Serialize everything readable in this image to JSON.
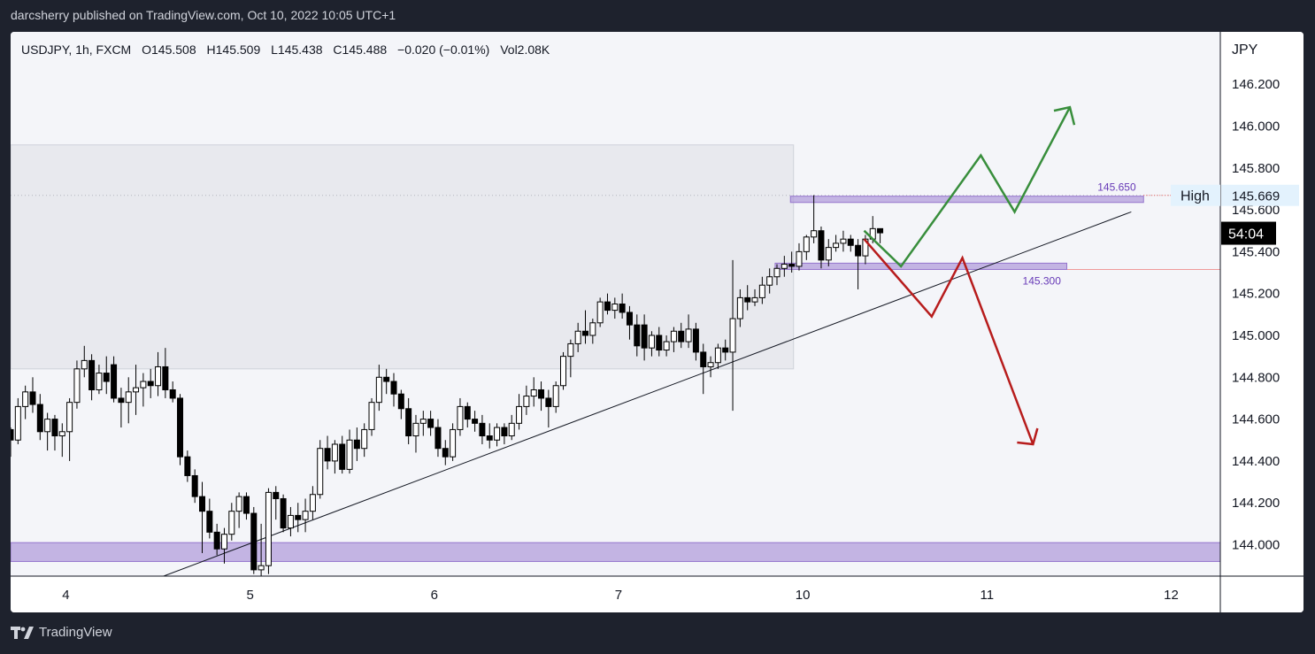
{
  "header": {
    "publisher_line": "darcsherry published on TradingView.com, Oct 10, 2022 10:05 UTC+1"
  },
  "footer": {
    "brand": "TradingView",
    "brand_icon": "tradingview-logo-icon"
  },
  "colors": {
    "background": "#1e222d",
    "up_candle_fill": "#ffffff",
    "down_candle_fill": "#000000",
    "zone_fill": "#b39ddb",
    "zone_border": "#9575cd",
    "bullish_path": "#388e3c",
    "bearish_path": "#b71c1c",
    "trendline": "#131722",
    "range_box": "#e8e9ee"
  },
  "chart_data": {
    "type": "candlestick",
    "legend": {
      "symbol": "USDJPY, 1h, FXCM",
      "open": "O145.508",
      "high": "H145.509",
      "low": "L145.438",
      "close": "C145.488",
      "change": "−0.020 (−0.01%)",
      "volume": "Vol2.08K"
    },
    "currency_label": "JPY",
    "y_ticks": [
      "146.200",
      "146.000",
      "145.800",
      "145.600",
      "145.400",
      "145.200",
      "145.000",
      "144.800",
      "144.600",
      "144.400",
      "144.200",
      "144.000"
    ],
    "ylim": [
      143.85,
      146.45
    ],
    "x_ticks": [
      {
        "label": "4",
        "pos": 2.0
      },
      {
        "label": "5",
        "pos": 5.0
      },
      {
        "label": "6",
        "pos": 8.0
      },
      {
        "label": "7",
        "pos": 11.0
      },
      {
        "label": "10",
        "pos": 14.0
      },
      {
        "label": "11",
        "pos": 17.0
      },
      {
        "label": "12",
        "pos": 20.0
      }
    ],
    "xlim": [
      1.1,
      20.8
    ],
    "high_tag": {
      "label": "High",
      "value": "145.669",
      "y": 145.669
    },
    "countdown_tag": {
      "label": "54:04",
      "y": 145.488
    },
    "zones": [
      {
        "label": "145.650",
        "x0": 13.8,
        "x1": 19.55,
        "y0": 145.635,
        "y1": 145.665
      },
      {
        "label": "145.300",
        "x0": 13.55,
        "x1": 18.3,
        "y0": 145.315,
        "y1": 145.345
      },
      {
        "label": "",
        "x0": 1.1,
        "x1": 20.8,
        "y0": 143.92,
        "y1": 144.01
      }
    ],
    "range_box": {
      "x0": 1.1,
      "x1": 13.85,
      "y0": 144.84,
      "y1": 145.91
    },
    "trendline": [
      {
        "x": 3.5,
        "y": 143.84
      },
      {
        "x": 19.35,
        "y": 145.59
      }
    ],
    "bullish_path": [
      {
        "x": 15.0,
        "y": 145.5
      },
      {
        "x": 15.6,
        "y": 145.33
      },
      {
        "x": 16.9,
        "y": 145.86
      },
      {
        "x": 17.45,
        "y": 145.59
      },
      {
        "x": 18.35,
        "y": 146.09
      },
      {
        "x": 18.4,
        "y": 146.01
      }
    ],
    "bearish_path": [
      {
        "x": 15.0,
        "y": 145.46
      },
      {
        "x": 16.1,
        "y": 145.09
      },
      {
        "x": 16.6,
        "y": 145.37
      },
      {
        "x": 17.75,
        "y": 144.48
      },
      {
        "x": 17.85,
        "y": 144.56
      }
    ],
    "candles": [
      {
        "x": 1.1,
        "o": 144.55,
        "h": 144.56,
        "l": 144.42,
        "c": 144.5
      },
      {
        "x": 1.22,
        "o": 144.5,
        "h": 144.7,
        "l": 144.48,
        "c": 144.66
      },
      {
        "x": 1.34,
        "o": 144.66,
        "h": 144.76,
        "l": 144.6,
        "c": 144.73
      },
      {
        "x": 1.46,
        "o": 144.73,
        "h": 144.8,
        "l": 144.63,
        "c": 144.67
      },
      {
        "x": 1.58,
        "o": 144.67,
        "h": 144.72,
        "l": 144.5,
        "c": 144.54
      },
      {
        "x": 1.7,
        "o": 144.54,
        "h": 144.63,
        "l": 144.45,
        "c": 144.6
      },
      {
        "x": 1.82,
        "o": 144.6,
        "h": 144.62,
        "l": 144.45,
        "c": 144.52
      },
      {
        "x": 1.94,
        "o": 144.52,
        "h": 144.58,
        "l": 144.42,
        "c": 144.54
      },
      {
        "x": 2.06,
        "o": 144.54,
        "h": 144.7,
        "l": 144.4,
        "c": 144.68
      },
      {
        "x": 2.18,
        "o": 144.68,
        "h": 144.88,
        "l": 144.65,
        "c": 144.84
      },
      {
        "x": 2.3,
        "o": 144.84,
        "h": 144.95,
        "l": 144.8,
        "c": 144.88
      },
      {
        "x": 2.42,
        "o": 144.88,
        "h": 144.91,
        "l": 144.69,
        "c": 144.74
      },
      {
        "x": 2.54,
        "o": 144.74,
        "h": 144.86,
        "l": 144.72,
        "c": 144.82
      },
      {
        "x": 2.66,
        "o": 144.82,
        "h": 144.9,
        "l": 144.72,
        "c": 144.78
      },
      {
        "x": 2.78,
        "o": 144.86,
        "h": 144.9,
        "l": 144.68,
        "c": 144.7
      },
      {
        "x": 2.9,
        "o": 144.7,
        "h": 144.75,
        "l": 144.56,
        "c": 144.68
      },
      {
        "x": 3.02,
        "o": 144.68,
        "h": 144.8,
        "l": 144.58,
        "c": 144.73
      },
      {
        "x": 3.14,
        "o": 144.73,
        "h": 144.86,
        "l": 144.62,
        "c": 144.75
      },
      {
        "x": 3.26,
        "o": 144.75,
        "h": 144.82,
        "l": 144.66,
        "c": 144.78
      },
      {
        "x": 3.38,
        "o": 144.78,
        "h": 144.84,
        "l": 144.7,
        "c": 144.76
      },
      {
        "x": 3.5,
        "o": 144.76,
        "h": 144.92,
        "l": 144.71,
        "c": 144.85
      },
      {
        "x": 3.62,
        "o": 144.85,
        "h": 144.94,
        "l": 144.7,
        "c": 144.74
      },
      {
        "x": 3.74,
        "o": 144.74,
        "h": 144.78,
        "l": 144.68,
        "c": 144.7
      },
      {
        "x": 3.86,
        "o": 144.7,
        "h": 144.72,
        "l": 144.38,
        "c": 144.42
      },
      {
        "x": 3.98,
        "o": 144.42,
        "h": 144.45,
        "l": 144.3,
        "c": 144.33
      },
      {
        "x": 4.1,
        "o": 144.33,
        "h": 144.36,
        "l": 144.2,
        "c": 144.23
      },
      {
        "x": 4.22,
        "o": 144.23,
        "h": 144.3,
        "l": 143.96,
        "c": 144.16
      },
      {
        "x": 4.34,
        "o": 144.16,
        "h": 144.22,
        "l": 144.03,
        "c": 144.06
      },
      {
        "x": 4.46,
        "o": 144.06,
        "h": 144.1,
        "l": 143.95,
        "c": 143.98
      },
      {
        "x": 4.58,
        "o": 143.98,
        "h": 144.08,
        "l": 143.91,
        "c": 144.05
      },
      {
        "x": 4.7,
        "o": 144.05,
        "h": 144.2,
        "l": 144.02,
        "c": 144.16
      },
      {
        "x": 4.82,
        "o": 144.16,
        "h": 144.25,
        "l": 144.08,
        "c": 144.23
      },
      {
        "x": 4.94,
        "o": 144.23,
        "h": 144.25,
        "l": 144.12,
        "c": 144.15
      },
      {
        "x": 5.06,
        "o": 144.15,
        "h": 144.18,
        "l": 143.86,
        "c": 143.88
      },
      {
        "x": 5.18,
        "o": 143.88,
        "h": 144.1,
        "l": 143.84,
        "c": 143.9
      },
      {
        "x": 5.3,
        "o": 143.9,
        "h": 144.27,
        "l": 143.86,
        "c": 144.25
      },
      {
        "x": 5.42,
        "o": 144.25,
        "h": 144.28,
        "l": 144.12,
        "c": 144.22
      },
      {
        "x": 5.54,
        "o": 144.22,
        "h": 144.24,
        "l": 144.06,
        "c": 144.08
      },
      {
        "x": 5.66,
        "o": 144.08,
        "h": 144.18,
        "l": 144.04,
        "c": 144.14
      },
      {
        "x": 5.78,
        "o": 144.14,
        "h": 144.2,
        "l": 144.06,
        "c": 144.12
      },
      {
        "x": 5.9,
        "o": 144.12,
        "h": 144.22,
        "l": 144.06,
        "c": 144.16
      },
      {
        "x": 6.02,
        "o": 144.16,
        "h": 144.28,
        "l": 144.12,
        "c": 144.24
      },
      {
        "x": 6.14,
        "o": 144.24,
        "h": 144.5,
        "l": 144.22,
        "c": 144.46
      },
      {
        "x": 6.26,
        "o": 144.46,
        "h": 144.52,
        "l": 144.36,
        "c": 144.4
      },
      {
        "x": 6.38,
        "o": 144.4,
        "h": 144.5,
        "l": 144.34,
        "c": 144.48
      },
      {
        "x": 6.5,
        "o": 144.48,
        "h": 144.52,
        "l": 144.34,
        "c": 144.36
      },
      {
        "x": 6.62,
        "o": 144.36,
        "h": 144.55,
        "l": 144.34,
        "c": 144.5
      },
      {
        "x": 6.74,
        "o": 144.5,
        "h": 144.56,
        "l": 144.4,
        "c": 144.46
      },
      {
        "x": 6.86,
        "o": 144.46,
        "h": 144.58,
        "l": 144.42,
        "c": 144.55
      },
      {
        "x": 6.98,
        "o": 144.55,
        "h": 144.7,
        "l": 144.52,
        "c": 144.68
      },
      {
        "x": 7.1,
        "o": 144.68,
        "h": 144.86,
        "l": 144.64,
        "c": 144.8
      },
      {
        "x": 7.22,
        "o": 144.8,
        "h": 144.84,
        "l": 144.72,
        "c": 144.78
      },
      {
        "x": 7.34,
        "o": 144.78,
        "h": 144.82,
        "l": 144.66,
        "c": 144.72
      },
      {
        "x": 7.46,
        "o": 144.72,
        "h": 144.74,
        "l": 144.6,
        "c": 144.65
      },
      {
        "x": 7.58,
        "o": 144.65,
        "h": 144.7,
        "l": 144.48,
        "c": 144.52
      },
      {
        "x": 7.7,
        "o": 144.52,
        "h": 144.62,
        "l": 144.44,
        "c": 144.58
      },
      {
        "x": 7.82,
        "o": 144.58,
        "h": 144.64,
        "l": 144.52,
        "c": 144.6
      },
      {
        "x": 7.94,
        "o": 144.6,
        "h": 144.64,
        "l": 144.52,
        "c": 144.56
      },
      {
        "x": 8.06,
        "o": 144.56,
        "h": 144.6,
        "l": 144.42,
        "c": 144.46
      },
      {
        "x": 8.18,
        "o": 144.46,
        "h": 144.5,
        "l": 144.38,
        "c": 144.42
      },
      {
        "x": 8.3,
        "o": 144.42,
        "h": 144.58,
        "l": 144.4,
        "c": 144.55
      },
      {
        "x": 8.42,
        "o": 144.55,
        "h": 144.7,
        "l": 144.52,
        "c": 144.66
      },
      {
        "x": 8.54,
        "o": 144.66,
        "h": 144.68,
        "l": 144.56,
        "c": 144.6
      },
      {
        "x": 8.66,
        "o": 144.6,
        "h": 144.64,
        "l": 144.54,
        "c": 144.58
      },
      {
        "x": 8.78,
        "o": 144.58,
        "h": 144.62,
        "l": 144.48,
        "c": 144.52
      },
      {
        "x": 8.9,
        "o": 144.52,
        "h": 144.58,
        "l": 144.46,
        "c": 144.5
      },
      {
        "x": 9.02,
        "o": 144.5,
        "h": 144.58,
        "l": 144.47,
        "c": 144.56
      },
      {
        "x": 9.14,
        "o": 144.56,
        "h": 144.58,
        "l": 144.48,
        "c": 144.52
      },
      {
        "x": 9.26,
        "o": 144.52,
        "h": 144.62,
        "l": 144.5,
        "c": 144.58
      },
      {
        "x": 9.38,
        "o": 144.58,
        "h": 144.72,
        "l": 144.55,
        "c": 144.66
      },
      {
        "x": 9.5,
        "o": 144.66,
        "h": 144.76,
        "l": 144.62,
        "c": 144.71
      },
      {
        "x": 9.62,
        "o": 144.71,
        "h": 144.8,
        "l": 144.66,
        "c": 144.74
      },
      {
        "x": 9.74,
        "o": 144.74,
        "h": 144.78,
        "l": 144.64,
        "c": 144.7
      },
      {
        "x": 9.86,
        "o": 144.7,
        "h": 144.74,
        "l": 144.56,
        "c": 144.66
      },
      {
        "x": 9.98,
        "o": 144.66,
        "h": 144.78,
        "l": 144.63,
        "c": 144.76
      },
      {
        "x": 10.1,
        "o": 144.76,
        "h": 144.92,
        "l": 144.74,
        "c": 144.9
      },
      {
        "x": 10.22,
        "o": 144.9,
        "h": 144.98,
        "l": 144.8,
        "c": 144.96
      },
      {
        "x": 10.34,
        "o": 144.96,
        "h": 145.06,
        "l": 144.92,
        "c": 145.02
      },
      {
        "x": 10.46,
        "o": 145.02,
        "h": 145.12,
        "l": 144.96,
        "c": 145.0
      },
      {
        "x": 10.58,
        "o": 145.0,
        "h": 145.08,
        "l": 144.96,
        "c": 145.06
      },
      {
        "x": 10.7,
        "o": 145.06,
        "h": 145.18,
        "l": 145.04,
        "c": 145.16
      },
      {
        "x": 10.82,
        "o": 145.16,
        "h": 145.2,
        "l": 145.1,
        "c": 145.12
      },
      {
        "x": 10.94,
        "o": 145.12,
        "h": 145.18,
        "l": 145.08,
        "c": 145.15
      },
      {
        "x": 11.06,
        "o": 145.15,
        "h": 145.2,
        "l": 145.08,
        "c": 145.11
      },
      {
        "x": 11.18,
        "o": 145.11,
        "h": 145.14,
        "l": 144.98,
        "c": 145.05
      },
      {
        "x": 11.3,
        "o": 145.05,
        "h": 145.1,
        "l": 144.9,
        "c": 144.95
      },
      {
        "x": 11.42,
        "o": 145.05,
        "h": 145.1,
        "l": 144.88,
        "c": 144.94
      },
      {
        "x": 11.54,
        "o": 144.94,
        "h": 145.02,
        "l": 144.9,
        "c": 145.0
      },
      {
        "x": 11.66,
        "o": 145.0,
        "h": 145.04,
        "l": 144.9,
        "c": 144.93
      },
      {
        "x": 11.78,
        "o": 144.93,
        "h": 145.0,
        "l": 144.9,
        "c": 144.97
      },
      {
        "x": 11.9,
        "o": 144.97,
        "h": 145.04,
        "l": 144.92,
        "c": 145.02
      },
      {
        "x": 12.02,
        "o": 145.02,
        "h": 145.06,
        "l": 144.94,
        "c": 144.97
      },
      {
        "x": 12.14,
        "o": 144.97,
        "h": 145.1,
        "l": 144.94,
        "c": 145.03
      },
      {
        "x": 12.26,
        "o": 145.03,
        "h": 145.06,
        "l": 144.88,
        "c": 144.92
      },
      {
        "x": 12.38,
        "o": 144.92,
        "h": 144.96,
        "l": 144.72,
        "c": 144.85
      },
      {
        "x": 12.5,
        "o": 144.85,
        "h": 144.9,
        "l": 144.8,
        "c": 144.87
      },
      {
        "x": 12.62,
        "o": 144.87,
        "h": 144.96,
        "l": 144.84,
        "c": 144.94
      },
      {
        "x": 12.74,
        "o": 144.94,
        "h": 144.98,
        "l": 144.88,
        "c": 144.92
      },
      {
        "x": 12.86,
        "o": 144.92,
        "h": 145.36,
        "l": 144.64,
        "c": 145.08
      },
      {
        "x": 12.98,
        "o": 145.08,
        "h": 145.22,
        "l": 145.04,
        "c": 145.18
      },
      {
        "x": 13.1,
        "o": 145.18,
        "h": 145.24,
        "l": 145.12,
        "c": 145.16
      },
      {
        "x": 13.22,
        "o": 145.16,
        "h": 145.22,
        "l": 145.14,
        "c": 145.18
      },
      {
        "x": 13.34,
        "o": 145.18,
        "h": 145.28,
        "l": 145.15,
        "c": 145.24
      },
      {
        "x": 13.46,
        "o": 145.24,
        "h": 145.32,
        "l": 145.2,
        "c": 145.28
      },
      {
        "x": 13.58,
        "o": 145.28,
        "h": 145.34,
        "l": 145.24,
        "c": 145.32
      },
      {
        "x": 13.7,
        "o": 145.32,
        "h": 145.38,
        "l": 145.28,
        "c": 145.34
      },
      {
        "x": 13.82,
        "o": 145.34,
        "h": 145.4,
        "l": 145.3,
        "c": 145.33
      },
      {
        "x": 13.94,
        "o": 145.33,
        "h": 145.44,
        "l": 145.31,
        "c": 145.4
      },
      {
        "x": 14.06,
        "o": 145.4,
        "h": 145.48,
        "l": 145.36,
        "c": 145.47
      },
      {
        "x": 14.18,
        "o": 145.47,
        "h": 145.67,
        "l": 145.44,
        "c": 145.5
      },
      {
        "x": 14.3,
        "o": 145.5,
        "h": 145.52,
        "l": 145.32,
        "c": 145.36
      },
      {
        "x": 14.42,
        "o": 145.36,
        "h": 145.46,
        "l": 145.33,
        "c": 145.42
      },
      {
        "x": 14.54,
        "o": 145.42,
        "h": 145.48,
        "l": 145.4,
        "c": 145.44
      },
      {
        "x": 14.66,
        "o": 145.44,
        "h": 145.5,
        "l": 145.4,
        "c": 145.46
      },
      {
        "x": 14.78,
        "o": 145.46,
        "h": 145.48,
        "l": 145.4,
        "c": 145.43
      },
      {
        "x": 14.9,
        "o": 145.43,
        "h": 145.46,
        "l": 145.22,
        "c": 145.38
      },
      {
        "x": 15.02,
        "o": 145.38,
        "h": 145.48,
        "l": 145.34,
        "c": 145.46
      },
      {
        "x": 15.14,
        "o": 145.46,
        "h": 145.57,
        "l": 145.44,
        "c": 145.51
      },
      {
        "x": 15.26,
        "o": 145.51,
        "h": 145.51,
        "l": 145.44,
        "c": 145.49
      }
    ]
  }
}
